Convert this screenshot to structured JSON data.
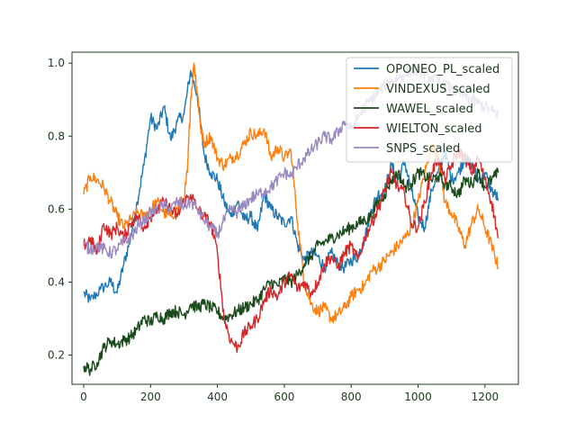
{
  "chart_data": {
    "type": "line",
    "title": "",
    "xlabel": "",
    "ylabel": "",
    "xlim": [
      -35,
      1300
    ],
    "ylim": [
      0.12,
      1.03
    ],
    "x_ticks": [
      0,
      200,
      400,
      600,
      800,
      1000,
      1200
    ],
    "x_tick_labels": [
      "0",
      "200",
      "400",
      "600",
      "800",
      "1000",
      "1200"
    ],
    "y_ticks": [
      0.2,
      0.4,
      0.6,
      0.8,
      1.0
    ],
    "y_tick_labels": [
      "0.2",
      "0.4",
      "0.6",
      "0.8",
      "1.0"
    ],
    "grid": false,
    "legend_position": "top-right",
    "series": [
      {
        "name": "OPONEO_PL_scaled",
        "color": "#1f77b4",
        "points": [
          [
            0,
            0.37
          ],
          [
            20,
            0.35
          ],
          [
            50,
            0.38
          ],
          [
            80,
            0.4
          ],
          [
            100,
            0.37
          ],
          [
            120,
            0.45
          ],
          [
            140,
            0.52
          ],
          [
            160,
            0.62
          ],
          [
            180,
            0.72
          ],
          [
            200,
            0.85
          ],
          [
            220,
            0.82
          ],
          [
            240,
            0.88
          ],
          [
            260,
            0.79
          ],
          [
            280,
            0.84
          ],
          [
            300,
            0.86
          ],
          [
            320,
            0.98
          ],
          [
            340,
            0.91
          ],
          [
            360,
            0.75
          ],
          [
            380,
            0.7
          ],
          [
            400,
            0.68
          ],
          [
            420,
            0.62
          ],
          [
            440,
            0.58
          ],
          [
            460,
            0.62
          ],
          [
            480,
            0.57
          ],
          [
            500,
            0.58
          ],
          [
            520,
            0.54
          ],
          [
            540,
            0.64
          ],
          [
            560,
            0.6
          ],
          [
            580,
            0.58
          ],
          [
            600,
            0.56
          ],
          [
            620,
            0.58
          ],
          [
            640,
            0.5
          ],
          [
            660,
            0.46
          ],
          [
            680,
            0.48
          ],
          [
            700,
            0.47
          ],
          [
            720,
            0.44
          ],
          [
            740,
            0.48
          ],
          [
            760,
            0.45
          ],
          [
            780,
            0.44
          ],
          [
            800,
            0.46
          ],
          [
            820,
            0.47
          ],
          [
            840,
            0.52
          ],
          [
            860,
            0.6
          ],
          [
            880,
            0.64
          ],
          [
            900,
            0.65
          ],
          [
            920,
            0.72
          ],
          [
            940,
            0.68
          ],
          [
            960,
            0.73
          ],
          [
            980,
            0.65
          ],
          [
            1000,
            0.58
          ],
          [
            1020,
            0.55
          ],
          [
            1040,
            0.65
          ],
          [
            1060,
            0.7
          ],
          [
            1080,
            0.76
          ],
          [
            1100,
            0.68
          ],
          [
            1120,
            0.7
          ],
          [
            1140,
            0.74
          ],
          [
            1160,
            0.72
          ],
          [
            1180,
            0.68
          ],
          [
            1200,
            0.7
          ],
          [
            1220,
            0.65
          ],
          [
            1240,
            0.63
          ]
        ]
      },
      {
        "name": "VINDEXUS_scaled",
        "color": "#ff7f0e",
        "points": [
          [
            0,
            0.64
          ],
          [
            20,
            0.69
          ],
          [
            40,
            0.68
          ],
          [
            60,
            0.66
          ],
          [
            80,
            0.62
          ],
          [
            100,
            0.58
          ],
          [
            120,
            0.55
          ],
          [
            140,
            0.57
          ],
          [
            160,
            0.59
          ],
          [
            180,
            0.58
          ],
          [
            200,
            0.6
          ],
          [
            220,
            0.62
          ],
          [
            240,
            0.59
          ],
          [
            260,
            0.58
          ],
          [
            280,
            0.6
          ],
          [
            300,
            0.63
          ],
          [
            310,
            0.7
          ],
          [
            320,
            0.9
          ],
          [
            330,
            1.0
          ],
          [
            340,
            0.92
          ],
          [
            350,
            0.82
          ],
          [
            360,
            0.78
          ],
          [
            380,
            0.8
          ],
          [
            400,
            0.74
          ],
          [
            420,
            0.72
          ],
          [
            440,
            0.74
          ],
          [
            460,
            0.75
          ],
          [
            480,
            0.78
          ],
          [
            500,
            0.81
          ],
          [
            520,
            0.8
          ],
          [
            540,
            0.82
          ],
          [
            560,
            0.74
          ],
          [
            580,
            0.77
          ],
          [
            600,
            0.74
          ],
          [
            620,
            0.76
          ],
          [
            640,
            0.56
          ],
          [
            660,
            0.4
          ],
          [
            680,
            0.34
          ],
          [
            700,
            0.32
          ],
          [
            720,
            0.33
          ],
          [
            740,
            0.3
          ],
          [
            760,
            0.31
          ],
          [
            780,
            0.33
          ],
          [
            800,
            0.36
          ],
          [
            820,
            0.38
          ],
          [
            840,
            0.39
          ],
          [
            860,
            0.43
          ],
          [
            880,
            0.44
          ],
          [
            900,
            0.46
          ],
          [
            920,
            0.48
          ],
          [
            940,
            0.5
          ],
          [
            960,
            0.52
          ],
          [
            980,
            0.55
          ],
          [
            1000,
            0.62
          ],
          [
            1020,
            0.7
          ],
          [
            1040,
            0.77
          ],
          [
            1060,
            0.75
          ],
          [
            1080,
            0.62
          ],
          [
            1100,
            0.59
          ],
          [
            1120,
            0.55
          ],
          [
            1140,
            0.5
          ],
          [
            1160,
            0.56
          ],
          [
            1180,
            0.6
          ],
          [
            1200,
            0.55
          ],
          [
            1220,
            0.5
          ],
          [
            1240,
            0.44
          ]
        ]
      },
      {
        "name": "WAWEL_scaled",
        "color": "#1b4a1b",
        "points": [
          [
            0,
            0.17
          ],
          [
            20,
            0.16
          ],
          [
            40,
            0.18
          ],
          [
            60,
            0.22
          ],
          [
            80,
            0.24
          ],
          [
            100,
            0.23
          ],
          [
            120,
            0.24
          ],
          [
            140,
            0.25
          ],
          [
            160,
            0.27
          ],
          [
            180,
            0.3
          ],
          [
            200,
            0.29
          ],
          [
            220,
            0.31
          ],
          [
            240,
            0.3
          ],
          [
            260,
            0.32
          ],
          [
            280,
            0.32
          ],
          [
            300,
            0.31
          ],
          [
            320,
            0.34
          ],
          [
            340,
            0.33
          ],
          [
            360,
            0.34
          ],
          [
            380,
            0.33
          ],
          [
            400,
            0.32
          ],
          [
            420,
            0.3
          ],
          [
            440,
            0.31
          ],
          [
            460,
            0.32
          ],
          [
            480,
            0.33
          ],
          [
            500,
            0.34
          ],
          [
            520,
            0.35
          ],
          [
            540,
            0.38
          ],
          [
            560,
            0.4
          ],
          [
            580,
            0.39
          ],
          [
            600,
            0.41
          ],
          [
            620,
            0.4
          ],
          [
            640,
            0.42
          ],
          [
            660,
            0.45
          ],
          [
            680,
            0.47
          ],
          [
            700,
            0.5
          ],
          [
            720,
            0.51
          ],
          [
            740,
            0.52
          ],
          [
            760,
            0.53
          ],
          [
            780,
            0.54
          ],
          [
            800,
            0.55
          ],
          [
            820,
            0.56
          ],
          [
            840,
            0.57
          ],
          [
            860,
            0.58
          ],
          [
            880,
            0.62
          ],
          [
            900,
            0.64
          ],
          [
            920,
            0.68
          ],
          [
            940,
            0.7
          ],
          [
            960,
            0.66
          ],
          [
            980,
            0.67
          ],
          [
            1000,
            0.7
          ],
          [
            1020,
            0.69
          ],
          [
            1040,
            0.68
          ],
          [
            1060,
            0.69
          ],
          [
            1080,
            0.67
          ],
          [
            1100,
            0.66
          ],
          [
            1120,
            0.64
          ],
          [
            1140,
            0.68
          ],
          [
            1160,
            0.67
          ],
          [
            1180,
            0.7
          ],
          [
            1200,
            0.66
          ],
          [
            1220,
            0.68
          ],
          [
            1240,
            0.7
          ]
        ]
      },
      {
        "name": "WIELTON_scaled",
        "color": "#d62728",
        "points": [
          [
            0,
            0.5
          ],
          [
            20,
            0.52
          ],
          [
            40,
            0.48
          ],
          [
            60,
            0.56
          ],
          [
            80,
            0.53
          ],
          [
            100,
            0.55
          ],
          [
            120,
            0.52
          ],
          [
            140,
            0.56
          ],
          [
            160,
            0.58
          ],
          [
            180,
            0.55
          ],
          [
            200,
            0.58
          ],
          [
            220,
            0.6
          ],
          [
            240,
            0.62
          ],
          [
            260,
            0.6
          ],
          [
            280,
            0.58
          ],
          [
            300,
            0.62
          ],
          [
            320,
            0.64
          ],
          [
            340,
            0.6
          ],
          [
            360,
            0.58
          ],
          [
            380,
            0.56
          ],
          [
            400,
            0.48
          ],
          [
            420,
            0.3
          ],
          [
            440,
            0.24
          ],
          [
            460,
            0.22
          ],
          [
            480,
            0.26
          ],
          [
            500,
            0.28
          ],
          [
            520,
            0.3
          ],
          [
            540,
            0.35
          ],
          [
            560,
            0.38
          ],
          [
            580,
            0.36
          ],
          [
            600,
            0.4
          ],
          [
            620,
            0.42
          ],
          [
            640,
            0.38
          ],
          [
            660,
            0.4
          ],
          [
            680,
            0.37
          ],
          [
            700,
            0.4
          ],
          [
            720,
            0.45
          ],
          [
            740,
            0.47
          ],
          [
            760,
            0.44
          ],
          [
            780,
            0.48
          ],
          [
            800,
            0.5
          ],
          [
            820,
            0.46
          ],
          [
            840,
            0.52
          ],
          [
            860,
            0.56
          ],
          [
            880,
            0.6
          ],
          [
            900,
            0.65
          ],
          [
            920,
            0.7
          ],
          [
            940,
            0.66
          ],
          [
            960,
            0.64
          ],
          [
            980,
            0.56
          ],
          [
            1000,
            0.55
          ],
          [
            1020,
            0.62
          ],
          [
            1040,
            0.7
          ],
          [
            1060,
            0.74
          ],
          [
            1080,
            0.68
          ],
          [
            1100,
            0.72
          ],
          [
            1120,
            0.76
          ],
          [
            1140,
            0.74
          ],
          [
            1160,
            0.7
          ],
          [
            1180,
            0.74
          ],
          [
            1200,
            0.68
          ],
          [
            1220,
            0.62
          ],
          [
            1240,
            0.52
          ]
        ]
      },
      {
        "name": "SNPS_scaled",
        "color": "#9b8ac2",
        "points": [
          [
            0,
            0.5
          ],
          [
            20,
            0.49
          ],
          [
            40,
            0.5
          ],
          [
            60,
            0.49
          ],
          [
            80,
            0.48
          ],
          [
            100,
            0.49
          ],
          [
            120,
            0.51
          ],
          [
            140,
            0.52
          ],
          [
            160,
            0.55
          ],
          [
            180,
            0.57
          ],
          [
            200,
            0.59
          ],
          [
            220,
            0.6
          ],
          [
            240,
            0.61
          ],
          [
            260,
            0.6
          ],
          [
            280,
            0.62
          ],
          [
            300,
            0.61
          ],
          [
            320,
            0.62
          ],
          [
            340,
            0.6
          ],
          [
            360,
            0.57
          ],
          [
            380,
            0.55
          ],
          [
            400,
            0.53
          ],
          [
            420,
            0.57
          ],
          [
            440,
            0.6
          ],
          [
            460,
            0.59
          ],
          [
            480,
            0.61
          ],
          [
            500,
            0.63
          ],
          [
            520,
            0.64
          ],
          [
            540,
            0.65
          ],
          [
            560,
            0.66
          ],
          [
            580,
            0.68
          ],
          [
            600,
            0.7
          ],
          [
            620,
            0.69
          ],
          [
            640,
            0.72
          ],
          [
            660,
            0.74
          ],
          [
            680,
            0.76
          ],
          [
            700,
            0.78
          ],
          [
            720,
            0.8
          ],
          [
            740,
            0.79
          ],
          [
            760,
            0.81
          ],
          [
            780,
            0.84
          ],
          [
            800,
            0.82
          ],
          [
            820,
            0.85
          ],
          [
            840,
            0.88
          ],
          [
            860,
            0.9
          ],
          [
            880,
            0.92
          ],
          [
            900,
            0.94
          ],
          [
            920,
            0.95
          ],
          [
            940,
            0.96
          ],
          [
            960,
            0.97
          ],
          [
            980,
            0.98
          ],
          [
            1000,
            0.98
          ],
          [
            1020,
            0.97
          ],
          [
            1040,
            0.96
          ],
          [
            1060,
            0.95
          ],
          [
            1080,
            0.94
          ],
          [
            1100,
            0.93
          ],
          [
            1120,
            0.92
          ],
          [
            1140,
            0.91
          ],
          [
            1160,
            0.9
          ],
          [
            1180,
            0.89
          ],
          [
            1200,
            0.88
          ],
          [
            1220,
            0.87
          ],
          [
            1240,
            0.86
          ]
        ]
      }
    ]
  }
}
